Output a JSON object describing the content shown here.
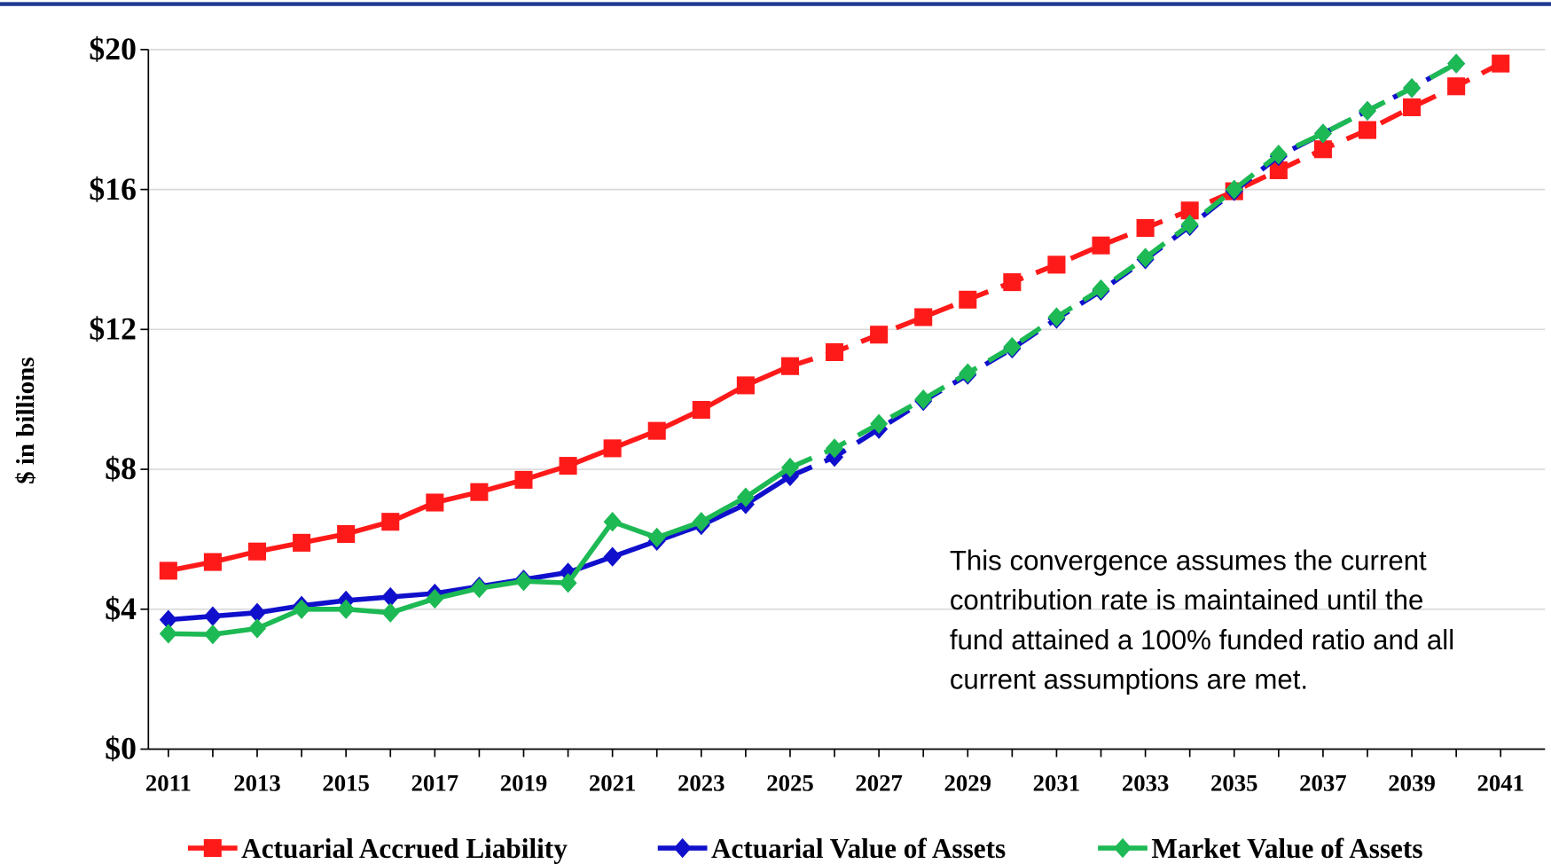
{
  "chart_data": {
    "type": "line",
    "y_label": "$ in billions",
    "x": [
      2011,
      2012,
      2013,
      2014,
      2015,
      2016,
      2017,
      2018,
      2019,
      2020,
      2021,
      2022,
      2023,
      2024,
      2025,
      2026,
      2027,
      2028,
      2029,
      2030,
      2031,
      2032,
      2033,
      2034,
      2035,
      2036,
      2037,
      2038,
      2039,
      2040,
      2041
    ],
    "xlim": [
      2010.55,
      2042
    ],
    "xticks": [
      2011,
      2013,
      2015,
      2017,
      2019,
      2021,
      2023,
      2025,
      2027,
      2029,
      2031,
      2033,
      2035,
      2037,
      2039,
      2041
    ],
    "ylim": [
      0,
      20
    ],
    "yticks": [
      {
        "value": 0,
        "label": "$0"
      },
      {
        "value": 4,
        "label": "$4"
      },
      {
        "value": 8,
        "label": "$8"
      },
      {
        "value": 12,
        "label": "$12"
      },
      {
        "value": 16,
        "label": "$16"
      },
      {
        "value": 20,
        "label": "$20"
      }
    ],
    "grid": true,
    "projection_start": 2025,
    "legend": "bottom",
    "series": [
      {
        "name": "Actuarial Accrued Liability",
        "color": "#ff1a1a",
        "marker": "square",
        "values": [
          5.1,
          5.35,
          5.65,
          5.9,
          6.15,
          6.5,
          7.05,
          7.35,
          7.7,
          8.1,
          8.6,
          9.1,
          9.7,
          10.4,
          10.95,
          11.35,
          11.85,
          12.35,
          12.85,
          13.35,
          13.85,
          14.4,
          14.9,
          15.4,
          15.95,
          16.55,
          17.15,
          17.7,
          18.35,
          18.95,
          19.6
        ]
      },
      {
        "name": "Actuarial Value of Assets",
        "color": "#1010cc",
        "marker": "diamond",
        "values": [
          3.7,
          3.8,
          3.9,
          4.1,
          4.25,
          4.35,
          4.45,
          4.65,
          4.85,
          5.05,
          5.5,
          5.95,
          6.4,
          7.0,
          7.8,
          8.35,
          9.15,
          9.95,
          10.7,
          11.45,
          12.3,
          13.1,
          14.0,
          14.95,
          15.95,
          16.95,
          17.6,
          18.25,
          18.9,
          19.6,
          null
        ]
      },
      {
        "name": "Market Value of Assets",
        "color": "#1db954",
        "marker": "diamond",
        "values": [
          3.3,
          3.28,
          3.45,
          4.0,
          4.0,
          3.9,
          4.3,
          4.6,
          4.8,
          4.75,
          6.5,
          6.05,
          6.5,
          7.2,
          8.05,
          8.6,
          9.3,
          10.0,
          10.75,
          11.5,
          12.35,
          13.15,
          14.05,
          15.0,
          16.0,
          17.0,
          17.6,
          18.25,
          18.9,
          19.6,
          null
        ]
      }
    ],
    "annotation": [
      "This convergence assumes the current",
      "contribution rate is maintained until the",
      "fund attained a 100% funded ratio and all",
      "current assumptions are met."
    ]
  }
}
